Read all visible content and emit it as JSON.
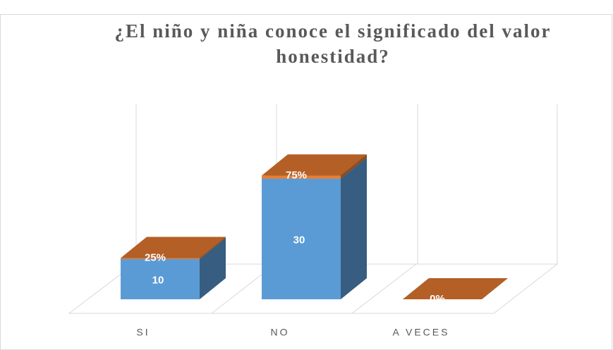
{
  "chart_data": {
    "type": "bar3d_stacked",
    "title": "¿El niño y niña conoce el significado del valor honestidad?",
    "categories": [
      "SI",
      "NO",
      "A VECES"
    ],
    "series": [
      {
        "color": "#5b9bd5",
        "values": [
          10,
          30,
          0
        ]
      },
      {
        "color": "#ed7d31",
        "values": [
          0.25,
          0.75,
          0
        ],
        "value_labels": [
          "25%",
          "75%",
          "0%"
        ]
      }
    ],
    "ylim": [
      0,
      35
    ],
    "grid": true
  }
}
